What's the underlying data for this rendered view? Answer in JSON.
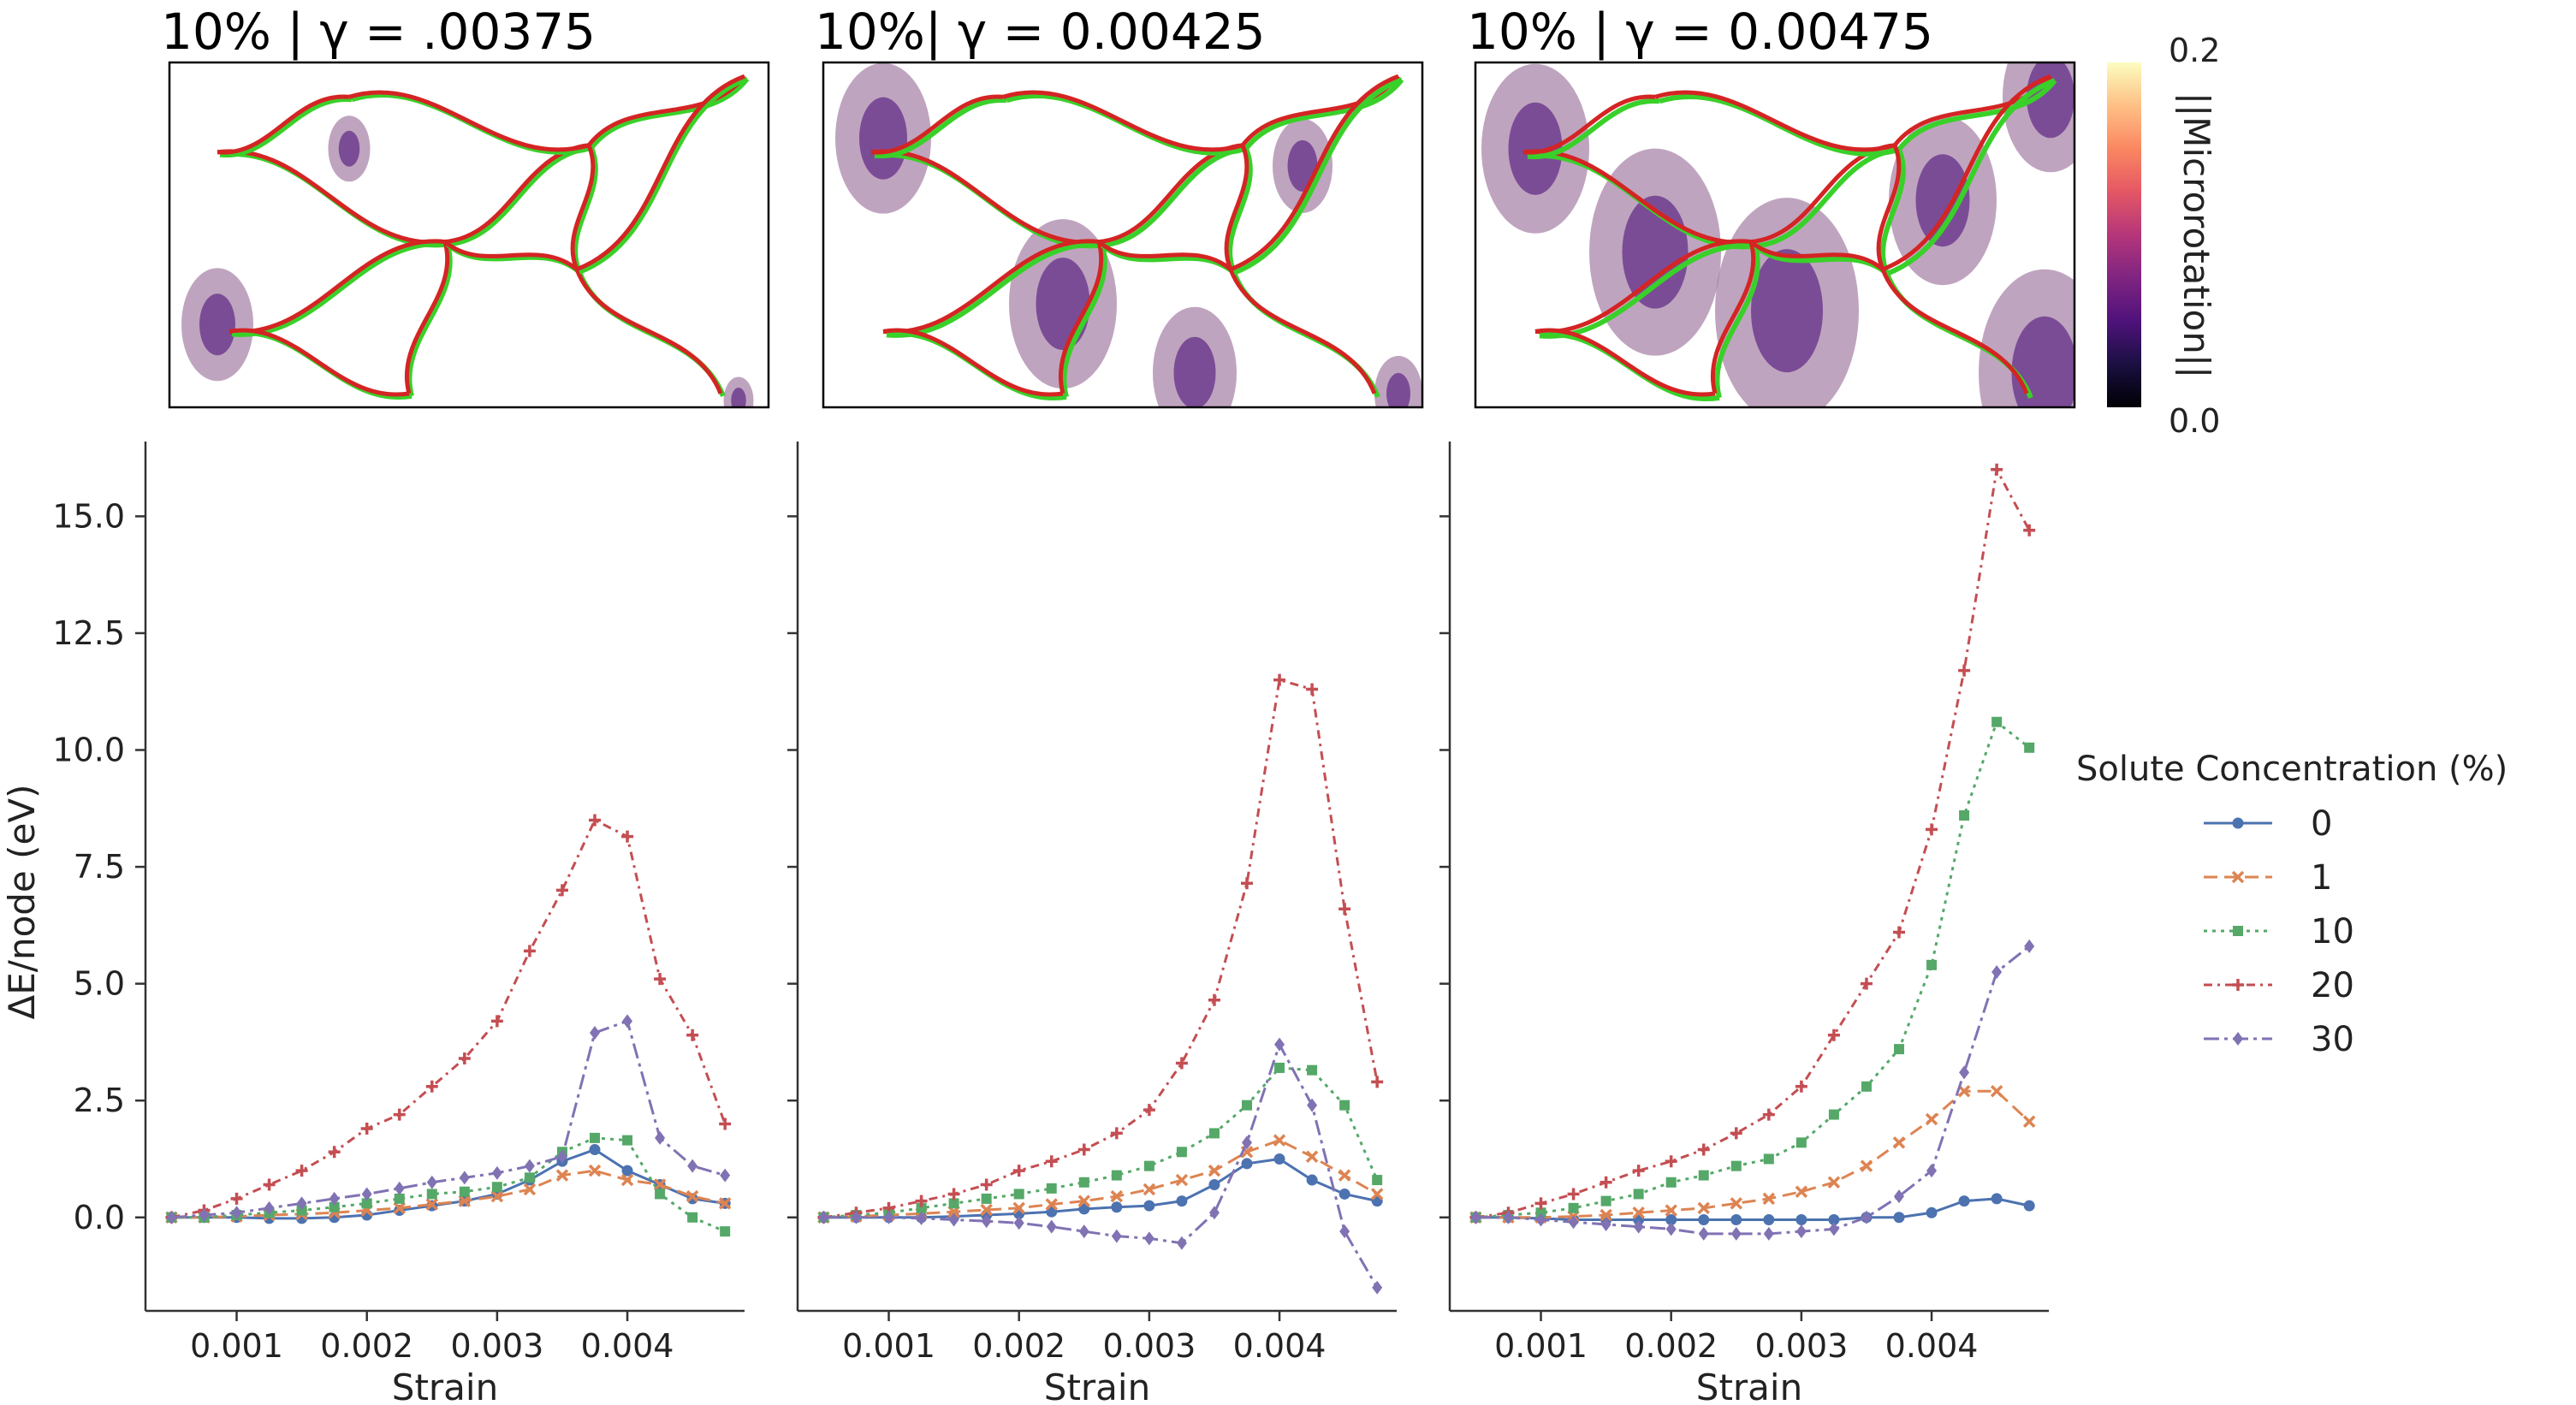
{
  "chart_data": [
    {
      "type": "line",
      "title": "10% | γ = .00375",
      "xlabel": "Strain",
      "ylabel": "ΔE/node (eV)",
      "xlim": [
        0.0003,
        0.0049
      ],
      "ylim": [
        -2.0,
        16.6
      ],
      "xticks": [
        "0.001",
        "0.002",
        "0.003",
        "0.004"
      ],
      "yticks": [
        "0.0",
        "2.5",
        "5.0",
        "7.5",
        "10.0",
        "12.5",
        "15.0"
      ],
      "x": [
        0.0005,
        0.00075,
        0.001,
        0.00125,
        0.0015,
        0.00175,
        0.002,
        0.00225,
        0.0025,
        0.00275,
        0.003,
        0.00325,
        0.0035,
        0.00375,
        0.004,
        0.00425,
        0.0045,
        0.00475
      ],
      "series": [
        {
          "name": "0",
          "values": [
            0,
            0,
            0,
            -0.02,
            -0.02,
            0,
            0.05,
            0.15,
            0.25,
            0.35,
            0.5,
            0.8,
            1.2,
            1.45,
            1.0,
            0.7,
            0.4,
            0.3
          ]
        },
        {
          "name": "1",
          "values": [
            0,
            0,
            0.02,
            0.05,
            0.07,
            0.1,
            0.15,
            0.2,
            0.28,
            0.35,
            0.45,
            0.6,
            0.9,
            1.0,
            0.8,
            0.7,
            0.45,
            0.3
          ]
        },
        {
          "name": "10",
          "values": [
            0,
            0,
            0.05,
            0.1,
            0.15,
            0.22,
            0.3,
            0.4,
            0.5,
            0.55,
            0.65,
            0.85,
            1.4,
            1.7,
            1.65,
            0.5,
            0.0,
            -0.3
          ]
        },
        {
          "name": "20",
          "values": [
            0,
            0.15,
            0.4,
            0.7,
            1.0,
            1.4,
            1.9,
            2.2,
            2.8,
            3.4,
            4.2,
            5.7,
            7.0,
            8.5,
            8.15,
            5.1,
            3.9,
            2.0
          ]
        },
        {
          "name": "30",
          "values": [
            0,
            0.05,
            0.1,
            0.2,
            0.3,
            0.4,
            0.5,
            0.62,
            0.75,
            0.85,
            0.95,
            1.1,
            1.3,
            3.95,
            4.2,
            1.7,
            1.1,
            0.9
          ]
        }
      ]
    },
    {
      "type": "line",
      "title": "10%| γ = 0.00425",
      "xlabel": "Strain",
      "ylabel": "",
      "xlim": [
        0.0003,
        0.0049
      ],
      "ylim": [
        -2.0,
        16.6
      ],
      "xticks": [
        "0.001",
        "0.002",
        "0.003",
        "0.004"
      ],
      "yticks": [],
      "x": [
        0.0005,
        0.00075,
        0.001,
        0.00125,
        0.0015,
        0.00175,
        0.002,
        0.00225,
        0.0025,
        0.00275,
        0.003,
        0.00325,
        0.0035,
        0.00375,
        0.004,
        0.00425,
        0.0045,
        0.00475
      ],
      "series": [
        {
          "name": "0",
          "values": [
            0,
            0,
            0,
            0,
            0.02,
            0.05,
            0.08,
            0.12,
            0.18,
            0.22,
            0.25,
            0.35,
            0.7,
            1.15,
            1.25,
            0.8,
            0.5,
            0.35
          ]
        },
        {
          "name": "1",
          "values": [
            0,
            0.02,
            0.05,
            0.08,
            0.12,
            0.16,
            0.2,
            0.28,
            0.35,
            0.45,
            0.6,
            0.8,
            1.0,
            1.4,
            1.65,
            1.3,
            0.9,
            0.5
          ]
        },
        {
          "name": "10",
          "values": [
            0,
            0.05,
            0.1,
            0.2,
            0.3,
            0.4,
            0.5,
            0.62,
            0.75,
            0.9,
            1.1,
            1.4,
            1.8,
            2.4,
            3.2,
            3.15,
            2.4,
            0.8
          ]
        },
        {
          "name": "20",
          "values": [
            0,
            0.1,
            0.2,
            0.35,
            0.5,
            0.7,
            1.0,
            1.2,
            1.45,
            1.8,
            2.3,
            3.3,
            4.65,
            7.15,
            11.5,
            11.3,
            6.6,
            2.9
          ]
        },
        {
          "name": "30",
          "values": [
            0,
            0,
            0,
            -0.02,
            -0.05,
            -0.08,
            -0.12,
            -0.2,
            -0.3,
            -0.4,
            -0.45,
            -0.55,
            0.1,
            1.6,
            3.7,
            2.4,
            -0.3,
            -1.5
          ]
        }
      ]
    },
    {
      "type": "line",
      "title": "10% | γ = 0.00475",
      "xlabel": "Strain",
      "ylabel": "",
      "xlim": [
        0.0003,
        0.0049
      ],
      "ylim": [
        -2.0,
        16.6
      ],
      "xticks": [
        "0.001",
        "0.002",
        "0.003",
        "0.004"
      ],
      "yticks": [],
      "x": [
        0.0005,
        0.00075,
        0.001,
        0.00125,
        0.0015,
        0.00175,
        0.002,
        0.00225,
        0.0025,
        0.00275,
        0.003,
        0.00325,
        0.0035,
        0.00375,
        0.004,
        0.00425,
        0.0045,
        0.00475
      ],
      "series": [
        {
          "name": "0",
          "values": [
            0,
            0,
            -0.02,
            -0.05,
            -0.05,
            -0.05,
            -0.05,
            -0.05,
            -0.05,
            -0.05,
            -0.05,
            -0.05,
            0,
            0,
            0.1,
            0.35,
            0.4,
            0.25
          ]
        },
        {
          "name": "1",
          "values": [
            0,
            0,
            0,
            0.02,
            0.05,
            0.1,
            0.15,
            0.2,
            0.3,
            0.4,
            0.55,
            0.75,
            1.1,
            1.6,
            2.1,
            2.7,
            2.7,
            2.05
          ]
        },
        {
          "name": "10",
          "values": [
            0,
            0.05,
            0.1,
            0.2,
            0.35,
            0.5,
            0.75,
            0.9,
            1.1,
            1.25,
            1.6,
            2.2,
            2.8,
            3.6,
            5.4,
            8.6,
            10.6,
            10.05
          ]
        },
        {
          "name": "20",
          "values": [
            0,
            0.1,
            0.3,
            0.5,
            0.75,
            1.0,
            1.2,
            1.45,
            1.8,
            2.2,
            2.8,
            3.9,
            5.0,
            6.1,
            8.3,
            11.7,
            16.0,
            14.7
          ]
        },
        {
          "name": "30",
          "values": [
            0,
            0,
            -0.05,
            -0.1,
            -0.15,
            -0.2,
            -0.25,
            -0.35,
            -0.35,
            -0.35,
            -0.3,
            -0.25,
            0,
            0.45,
            1.0,
            3.1,
            5.25,
            5.8
          ]
        }
      ]
    }
  ],
  "colorbar": {
    "label": "||Microrotation||",
    "min_label": "0.0",
    "max_label": "0.2",
    "colormap": "magma"
  },
  "legend": {
    "title": "Solute Concentration (%)",
    "placement": "right",
    "entries": [
      {
        "name": "0",
        "color": "#4c72b0",
        "dash": "",
        "marker": "circle"
      },
      {
        "name": "1",
        "color": "#dd8452",
        "dash": "16 8",
        "marker": "x"
      },
      {
        "name": "10",
        "color": "#55a868",
        "dash": "4 6",
        "marker": "square"
      },
      {
        "name": "20",
        "color": "#c44e52",
        "dash": "10 6 3 6",
        "marker": "plus"
      },
      {
        "name": "30",
        "color": "#8172b3",
        "dash": "18 6 4 6",
        "marker": "diamond"
      }
    ]
  },
  "colors": {
    "boundary_red": "#d42424",
    "boundary_green": "#3ad02a"
  }
}
